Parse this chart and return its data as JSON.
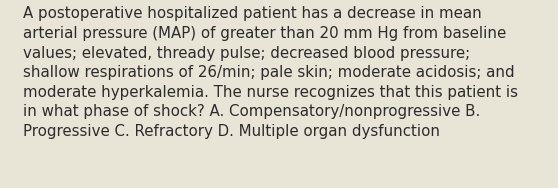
{
  "text_lines": [
    "A postoperative hospitalized patient has a decrease in mean",
    "arterial pressure (MAP) of greater than 20 mm Hg from baseline",
    "values; elevated, thready pulse; decreased blood pressure;",
    "shallow respirations of 26/min; pale skin; moderate acidosis; and",
    "moderate hyperkalemia. The nurse recognizes that this patient is",
    "in what phase of shock? A. Compensatory/nonprogressive B.",
    "Progressive C. Refractory D. Multiple organ dysfunction"
  ],
  "background_color": "#e8e5d7",
  "text_color": "#2c2c2c",
  "font_size": 10.8,
  "fig_width": 5.58,
  "fig_height": 1.88,
  "dpi": 100
}
